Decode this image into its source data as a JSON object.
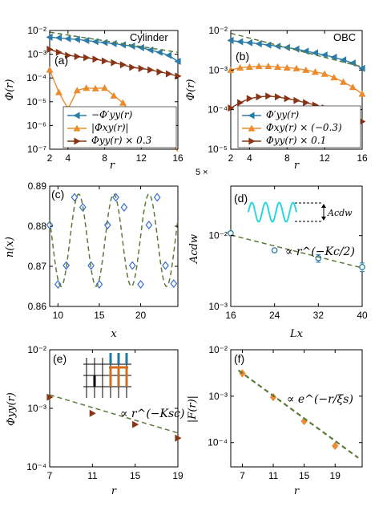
{
  "colors": {
    "blue": "#2b7ca8",
    "orange": "#ec8b2e",
    "darkred": "#8a3416",
    "fit": "#5c7a3a",
    "diamond_edge": "#3a6fd0",
    "cyan": "#2ad6df",
    "inset_blue": "#1f78a8",
    "inset_orange": "#d36d1c"
  },
  "chart_data": [
    {
      "type": "line",
      "panel": "(a)",
      "note": "Cylinder",
      "xlabel": "r",
      "ylabel": "Φ(r)",
      "xlim": [
        2,
        16
      ],
      "ylim": [
        1e-07,
        0.01
      ],
      "yscale": "log",
      "xticks": [
        "2",
        "4",
        "8",
        "12",
        "16"
      ],
      "xtick_values": [
        2,
        4,
        8,
        12,
        16
      ],
      "yticks": [
        "10⁻⁷",
        "10⁻⁶",
        "10⁻⁵",
        "10⁻⁴",
        "10⁻³",
        "10⁻²"
      ],
      "ytick_values": [
        1e-07,
        1e-06,
        1e-05,
        0.0001,
        0.001,
        0.01
      ],
      "legend_position": "bottom-right",
      "series": [
        {
          "name": "−Φ′yy(r)",
          "color_key": "blue",
          "marker": "left-triangle",
          "x": [
            2,
            3,
            4,
            5,
            6,
            7,
            8,
            9,
            10,
            11,
            12,
            13,
            14,
            15,
            16
          ],
          "y": [
            0.0052,
            0.0049,
            0.0045,
            0.0042,
            0.0038,
            0.0034,
            0.0031,
            0.0028,
            0.0025,
            0.0022,
            0.0019,
            0.0015,
            0.0012,
            0.0009,
            0.0005
          ]
        },
        {
          "name": "|Φxy(r)|",
          "color_key": "orange",
          "marker": "up-triangle",
          "x": [
            2,
            3,
            4,
            5,
            6,
            7,
            8,
            9,
            10,
            11,
            12,
            13,
            14,
            15,
            16
          ],
          "y": [
            0.00022,
            2.5e-05,
            5e-06,
            3e-05,
            3.8e-05,
            3.6e-05,
            3.8e-05,
            1.8e-05,
            9e-06,
            2.5e-06,
            2.5e-06,
            1.6e-06,
            1.8e-06,
            3e-07,
            7e-08
          ]
        },
        {
          "name": "Φyy(r) × 0.3",
          "color_key": "darkred",
          "marker": "right-triangle",
          "x": [
            2,
            3,
            4,
            5,
            6,
            7,
            8,
            9,
            10,
            11,
            12,
            13,
            14,
            15,
            16
          ],
          "y": [
            0.0016,
            0.0012,
            0.0009,
            0.0008,
            0.00072,
            0.00062,
            0.00052,
            0.00044,
            0.00036,
            0.00028,
            0.00025,
            0.00022,
            0.00018,
            0.00015,
            0.00012
          ]
        },
        {
          "name": "",
          "color_key": "fit",
          "style": "dashed",
          "x": [
            2,
            16
          ],
          "y": [
            0.0085,
            0.0012
          ]
        }
      ]
    },
    {
      "type": "line",
      "panel": "(b)",
      "note": "OBC",
      "xlabel": "r",
      "ylabel": "Φ(r)",
      "xlim": [
        2,
        16
      ],
      "ylim": [
        1e-05,
        0.01
      ],
      "yscale": "log",
      "xticks": [
        "2",
        "4",
        "8",
        "12",
        "16"
      ],
      "xtick_values": [
        2,
        4,
        8,
        12,
        16
      ],
      "yticks": [
        "10⁻⁵",
        "10⁻⁴",
        "10⁻³",
        "10⁻²"
      ],
      "ytick_values": [
        1e-05,
        0.0001,
        0.001,
        0.01
      ],
      "legend_position": "bottom-right",
      "series": [
        {
          "name": "Φ′yy(r)",
          "color_key": "blue",
          "marker": "left-triangle",
          "x": [
            2,
            3,
            4,
            5,
            6,
            7,
            8,
            9,
            10,
            11,
            12,
            13,
            14,
            15,
            16
          ],
          "y": [
            0.0056,
            0.0052,
            0.0049,
            0.0046,
            0.0043,
            0.004,
            0.0037,
            0.0034,
            0.003,
            0.0027,
            0.0024,
            0.0021,
            0.0018,
            0.0015,
            0.0011
          ]
        },
        {
          "name": "Φxy(r) × (−0.3)",
          "color_key": "orange",
          "marker": "up-triangle",
          "x": [
            2,
            3,
            4,
            5,
            6,
            7,
            8,
            9,
            10,
            11,
            12,
            13,
            14,
            15,
            16
          ],
          "y": [
            0.001,
            0.00115,
            0.0012,
            0.00125,
            0.00125,
            0.0012,
            0.00115,
            0.0011,
            0.001,
            0.0009,
            0.0008,
            0.00065,
            0.0005,
            0.00037,
            0.00025
          ]
        },
        {
          "name": "Φyy(r) × 0.1",
          "color_key": "darkred",
          "marker": "right-triangle",
          "x": [
            2,
            3,
            4,
            5,
            6,
            7,
            8,
            9,
            10,
            11,
            12,
            13,
            14,
            15,
            16
          ],
          "y": [
            0.00011,
            0.00015,
            0.00019,
            0.00021,
            0.00022,
            0.00021,
            0.00019,
            0.00017,
            0.00015,
            0.00013,
            0.00011,
            0.0001,
            9e-05,
            7e-05,
            5e-05
          ]
        },
        {
          "name": "",
          "color_key": "fit",
          "style": "dashed",
          "x": [
            2,
            16
          ],
          "y": [
            0.0085,
            0.0012
          ]
        }
      ]
    },
    {
      "type": "scatter",
      "panel": "(c)",
      "xlabel": "x",
      "ylabel": "n(x)",
      "xlim": [
        9,
        24.5
      ],
      "ylim": [
        0.86,
        0.89
      ],
      "xticks": [
        "10",
        "15",
        "20"
      ],
      "xtick_values": [
        10,
        15,
        20
      ],
      "yticks": [
        "0.86",
        "0.87",
        "0.88",
        "0.89"
      ],
      "ytick_values": [
        0.86,
        0.87,
        0.88,
        0.89
      ],
      "series": [
        {
          "name": "",
          "color_key": "diamond_edge",
          "marker": "diamond",
          "x": [
            9,
            10,
            11,
            12,
            13,
            14,
            15,
            16,
            17,
            18,
            19,
            20,
            21,
            22,
            23,
            24
          ],
          "y": [
            0.8803,
            0.8655,
            0.8702,
            0.8872,
            0.8847,
            0.8702,
            0.8655,
            0.8803,
            0.8872,
            0.8847,
            0.8702,
            0.8655,
            0.8803,
            0.8872,
            0.8702,
            0.8657
          ]
        },
        {
          "name": "",
          "color_key": "fit",
          "style": "dashed",
          "function": "n0 + A cos(2πx/λ + φ)",
          "n0": 0.8765,
          "A": 0.0115,
          "lambda": 4.25,
          "phase_x": 12.5
        }
      ]
    },
    {
      "type": "scatter",
      "panel": "(d)",
      "xlabel": "Lx",
      "ylabel": "Acdw",
      "xlim": [
        16,
        40
      ],
      "ylim": [
        0.001,
        0.05
      ],
      "yscale": "log",
      "xticks": [
        "16",
        "24",
        "32",
        "40"
      ],
      "xtick_values": [
        16,
        24,
        32,
        40
      ],
      "yticks": [
        "10⁻³",
        "10⁻²"
      ],
      "ytick_values": [
        0.001,
        0.01
      ],
      "top_tick_label": "5 ×",
      "annotation": "∝ r^(−Kc/2)",
      "inset_label": "Acdw",
      "series": [
        {
          "name": "",
          "color_key": "blue",
          "marker": "circle",
          "x": [
            16,
            24,
            32,
            40
          ],
          "y": [
            0.0108,
            0.0062,
            0.0048,
            0.0036
          ],
          "yerr": [
            0.0002,
            0.0002,
            0.0006,
            0.0005
          ]
        },
        {
          "name": "",
          "color_key": "fit",
          "style": "dashed",
          "x": [
            16,
            40
          ],
          "y": [
            0.0102,
            0.0035
          ]
        }
      ]
    },
    {
      "type": "scatter",
      "panel": "(e)",
      "xlabel": "r",
      "ylabel": "Φyy(r)",
      "xlim": [
        7,
        19
      ],
      "ylim": [
        0.0001,
        0.01
      ],
      "yscale": "log",
      "xticks": [
        "7",
        "11",
        "15",
        "19"
      ],
      "xtick_values": [
        7,
        11,
        15,
        19
      ],
      "yticks": [
        "10⁻⁴",
        "10⁻³",
        "10⁻²"
      ],
      "ytick_values": [
        0.0001,
        0.001,
        0.01
      ],
      "annotation": "∝ r^(−Ksc)",
      "series": [
        {
          "name": "",
          "color_key": "darkred",
          "marker": "right-triangle",
          "x": [
            7,
            11,
            15,
            19
          ],
          "y": [
            0.00155,
            0.00082,
            0.00053,
            0.00031
          ]
        },
        {
          "name": "",
          "color_key": "fit",
          "style": "dashed",
          "x": [
            7,
            19
          ],
          "y": [
            0.0017,
            0.00038
          ]
        }
      ]
    },
    {
      "type": "scatter",
      "panel": "(f)",
      "xlabel": "r",
      "ylabel": "|F(r)|",
      "xlim": [
        5.5,
        22.5
      ],
      "ylim": [
        3e-05,
        0.01
      ],
      "yscale": "log",
      "xticks": [
        "7",
        "11",
        "15",
        "19"
      ],
      "xtick_values": [
        7,
        11,
        15,
        19
      ],
      "yticks": [
        "10⁻⁴",
        "10⁻³",
        "10⁻²"
      ],
      "ytick_values": [
        0.0001,
        0.001,
        0.01
      ],
      "annotation": "∝ e^(−r/ξs)",
      "series": [
        {
          "name": "",
          "color_key": "orange",
          "marker": "diamond",
          "x": [
            7,
            11,
            15,
            19
          ],
          "y": [
            0.0031,
            0.00095,
            0.00029,
            8.5e-05
          ]
        },
        {
          "name": "",
          "color_key": "fit",
          "style": "dashed",
          "x": [
            6.5,
            22
          ],
          "y": [
            0.0036,
            4.7e-05
          ]
        }
      ]
    }
  ]
}
